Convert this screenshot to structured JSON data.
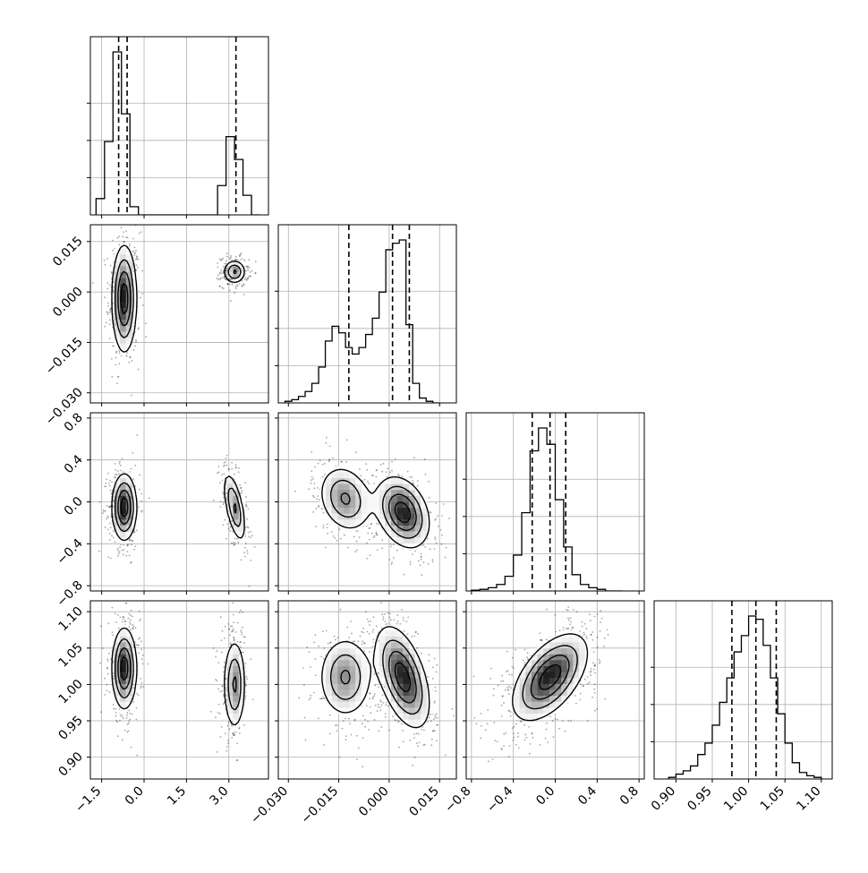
{
  "chart_data": {
    "type": "corner",
    "grid": true,
    "parameters": [
      {
        "id": "p1",
        "range": [
          -1.9,
          4.4
        ],
        "ticks": [
          "−1.5",
          "0.0",
          "1.5",
          "3.0"
        ],
        "tick_values": [
          -1.5,
          0.0,
          1.5,
          3.0
        ],
        "quantiles": [
          -0.9,
          -0.6,
          3.25
        ],
        "histogram": {
          "edges": [
            -1.7,
            -1.4,
            -1.1,
            -0.8,
            -0.5,
            -0.2,
            0.1,
            2.6,
            2.9,
            3.2,
            3.5,
            3.8,
            4.1
          ],
          "counts": [
            0.1,
            0.45,
            1.0,
            0.62,
            0.05,
            0.0,
            0.0,
            0.18,
            0.48,
            0.34,
            0.12,
            0.0
          ]
        }
      },
      {
        "id": "p2",
        "range": [
          -0.033,
          0.02
        ],
        "ticks": [
          "−0.030",
          "−0.015",
          "0.000",
          "0.015"
        ],
        "tick_values": [
          -0.03,
          -0.015,
          0.0,
          0.015
        ],
        "quantiles": [
          -0.012,
          0.001,
          0.006
        ],
        "histogram": {
          "edges": [
            -0.031,
            -0.029,
            -0.027,
            -0.025,
            -0.023,
            -0.021,
            -0.019,
            -0.017,
            -0.015,
            -0.013,
            -0.011,
            -0.009,
            -0.007,
            -0.005,
            -0.003,
            -0.001,
            0.001,
            0.003,
            0.005,
            0.007,
            0.009,
            0.011,
            0.013,
            0.015
          ],
          "counts": [
            0.01,
            0.02,
            0.04,
            0.07,
            0.12,
            0.22,
            0.38,
            0.47,
            0.43,
            0.34,
            0.3,
            0.34,
            0.42,
            0.52,
            0.68,
            0.94,
            0.98,
            1.0,
            0.48,
            0.12,
            0.03,
            0.01,
            0.0
          ]
        }
      },
      {
        "id": "p3",
        "range": [
          -0.85,
          0.85
        ],
        "ticks": [
          "−0.8",
          "−0.4",
          "0.0",
          "0.4",
          "0.8"
        ],
        "tick_values": [
          -0.8,
          -0.4,
          0.0,
          0.4,
          0.8
        ],
        "quantiles": [
          -0.22,
          -0.05,
          0.1
        ],
        "histogram": {
          "edges": [
            -0.8,
            -0.72,
            -0.64,
            -0.56,
            -0.48,
            -0.4,
            -0.32,
            -0.24,
            -0.16,
            -0.08,
            0.0,
            0.08,
            0.16,
            0.24,
            0.32,
            0.4,
            0.48,
            0.56,
            0.64
          ],
          "counts": [
            0.005,
            0.01,
            0.02,
            0.04,
            0.09,
            0.22,
            0.48,
            0.86,
            1.0,
            0.9,
            0.56,
            0.27,
            0.1,
            0.04,
            0.02,
            0.01,
            0.0,
            0.0
          ]
        }
      },
      {
        "id": "p4",
        "range": [
          0.87,
          1.115
        ],
        "ticks": [
          "0.90",
          "0.95",
          "1.00",
          "1.05",
          "1.10"
        ],
        "tick_values": [
          0.9,
          0.95,
          1.0,
          1.05,
          1.1
        ],
        "quantiles": [
          0.977,
          1.01,
          1.038
        ],
        "histogram": {
          "edges": [
            0.89,
            0.9,
            0.91,
            0.92,
            0.93,
            0.94,
            0.95,
            0.96,
            0.97,
            0.98,
            0.99,
            1.0,
            1.01,
            1.02,
            1.03,
            1.04,
            1.05,
            1.06,
            1.07,
            1.08,
            1.09,
            1.1
          ],
          "counts": [
            0.01,
            0.03,
            0.05,
            0.08,
            0.15,
            0.22,
            0.33,
            0.47,
            0.62,
            0.78,
            0.88,
            1.0,
            0.98,
            0.82,
            0.62,
            0.4,
            0.22,
            0.1,
            0.04,
            0.02,
            0.01
          ]
        }
      }
    ],
    "clusters_2d": [
      {
        "x": "p1",
        "y": "p2",
        "cx": -0.7,
        "cy": -0.002,
        "sx": 0.22,
        "sy": 0.008,
        "rho": 0.0,
        "w": 0.55
      },
      {
        "x": "p1",
        "y": "p2",
        "cx": 3.2,
        "cy": 0.006,
        "sx": 0.2,
        "sy": 0.0018,
        "rho": 0.0,
        "w": 0.35
      },
      {
        "x": "p1",
        "y": "p3",
        "cx": -0.7,
        "cy": -0.05,
        "sx": 0.22,
        "sy": 0.16,
        "rho": 0.0,
        "w": 0.55
      },
      {
        "x": "p1",
        "y": "p3",
        "cx": 3.2,
        "cy": -0.05,
        "sx": 0.2,
        "sy": 0.17,
        "rho": -0.6,
        "w": 0.35
      },
      {
        "x": "p1",
        "y": "p4",
        "cx": -0.7,
        "cy": 1.022,
        "sx": 0.22,
        "sy": 0.028,
        "rho": 0.0,
        "w": 0.55
      },
      {
        "x": "p1",
        "y": "p4",
        "cx": 3.2,
        "cy": 1.0,
        "sx": 0.2,
        "sy": 0.032,
        "rho": 0.0,
        "w": 0.35
      },
      {
        "x": "p2",
        "y": "p3",
        "cx": -0.013,
        "cy": 0.03,
        "sx": 0.004,
        "sy": 0.16,
        "rho": -0.2,
        "w": 0.35
      },
      {
        "x": "p2",
        "y": "p3",
        "cx": 0.004,
        "cy": -0.1,
        "sx": 0.004,
        "sy": 0.17,
        "rho": -0.3,
        "w": 0.55
      },
      {
        "x": "p2",
        "y": "p4",
        "cx": -0.013,
        "cy": 1.01,
        "sx": 0.004,
        "sy": 0.028,
        "rho": 0.0,
        "w": 0.35
      },
      {
        "x": "p2",
        "y": "p4",
        "cx": 0.004,
        "cy": 1.01,
        "sx": 0.004,
        "sy": 0.035,
        "rho": -0.5,
        "w": 0.55
      },
      {
        "x": "p3",
        "y": "p4",
        "cx": -0.05,
        "cy": 1.01,
        "sx": 0.18,
        "sy": 0.03,
        "rho": 0.55,
        "w": 1.0
      }
    ]
  }
}
